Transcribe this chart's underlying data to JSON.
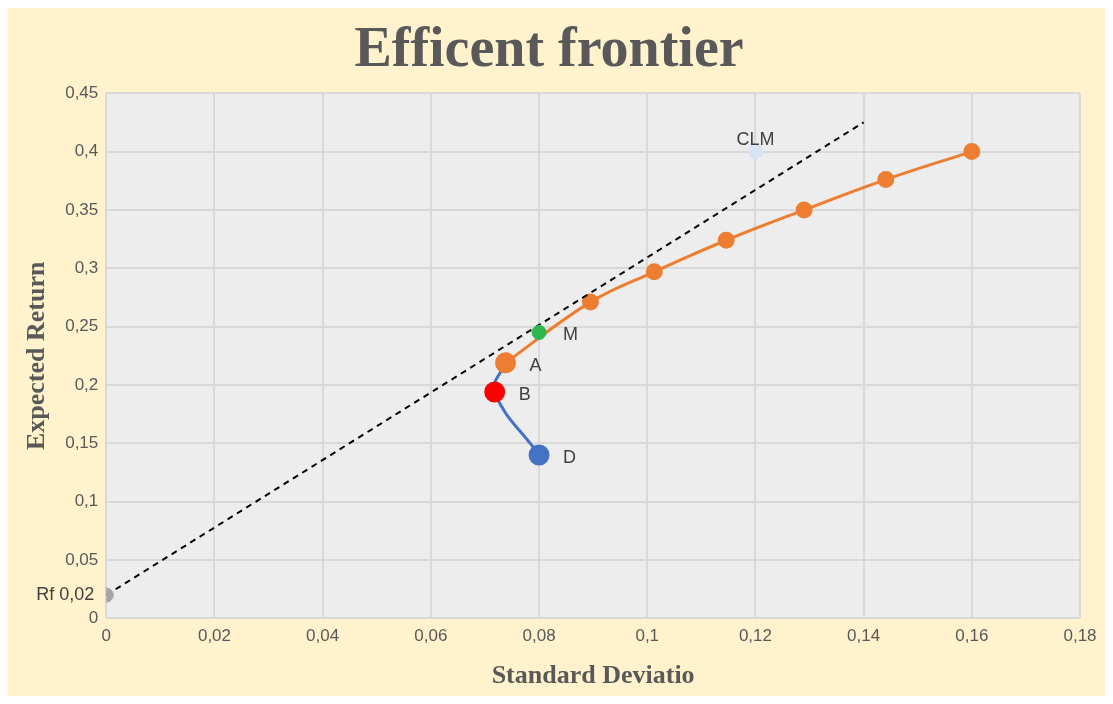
{
  "chart_data": {
    "type": "line",
    "title": "Efficent frontier",
    "xlabel": "Standard Deviatio",
    "ylabel": "Expected Return",
    "xlim": [
      0,
      0.18
    ],
    "ylim": [
      0,
      0.45
    ],
    "xticks": [
      {
        "value": 0,
        "label": "0"
      },
      {
        "value": 0.02,
        "label": "0,02"
      },
      {
        "value": 0.04,
        "label": "0,04"
      },
      {
        "value": 0.06,
        "label": "0,06"
      },
      {
        "value": 0.08,
        "label": "0,08"
      },
      {
        "value": 0.1,
        "label": "0,1"
      },
      {
        "value": 0.12,
        "label": "0,12"
      },
      {
        "value": 0.14,
        "label": "0,14"
      },
      {
        "value": 0.16,
        "label": "0,16"
      },
      {
        "value": 0.18,
        "label": "0,18"
      }
    ],
    "yticks": [
      {
        "value": 0,
        "label": "0"
      },
      {
        "value": 0.05,
        "label": "0,05"
      },
      {
        "value": 0.1,
        "label": "0,1"
      },
      {
        "value": 0.15,
        "label": "0,15"
      },
      {
        "value": 0.2,
        "label": "0,2"
      },
      {
        "value": 0.25,
        "label": "0,25"
      },
      {
        "value": 0.3,
        "label": "0,3"
      },
      {
        "value": 0.35,
        "label": "0,35"
      },
      {
        "value": 0.4,
        "label": "0,4"
      },
      {
        "value": 0.45,
        "label": "0,45"
      }
    ],
    "grid": true,
    "legend": false,
    "marker": "circle",
    "series": [
      {
        "color": "#4472c4",
        "colors": [
          "#4472c4",
          "#ff0000",
          "#ed7d31"
        ],
        "x": [
          0.08,
          0.0718,
          0.0738
        ],
        "values": [
          0.14,
          0.194,
          0.219
        ]
      },
      {
        "color": "#ed7d31",
        "x": [
          0.0738,
          0.0895,
          0.1013,
          0.1146,
          0.129,
          0.1441,
          0.16
        ],
        "values": [
          0.219,
          0.271,
          0.297,
          0.324,
          0.35,
          0.376,
          0.4
        ]
      },
      {
        "color": "#000000",
        "line_style": "dashed",
        "marker": "none",
        "x": [
          0,
          0.14
        ],
        "values": [
          0.02,
          0.425
        ]
      },
      {
        "type": "scatter",
        "color": "#2eb84b",
        "x": [
          0.08
        ],
        "values": [
          0.245
        ]
      },
      {
        "type": "scatter",
        "color": "#dae3f3",
        "x": [
          0.12
        ],
        "values": [
          0.4
        ]
      },
      {
        "type": "scatter",
        "color": "#a5a5a5",
        "x": [
          0
        ],
        "values": [
          0.02
        ]
      }
    ],
    "annotations": [
      {
        "text": "CLM",
        "x": 0.12,
        "y": 0.4
      },
      {
        "text": "M",
        "x": 0.08,
        "y": 0.245
      },
      {
        "text": "A",
        "x": 0.0738,
        "y": 0.219
      },
      {
        "text": "B",
        "x": 0.0718,
        "y": 0.194
      },
      {
        "text": "D",
        "x": 0.08,
        "y": 0.14
      },
      {
        "text": "Rf 0,02",
        "x": 0,
        "y": 0.02
      }
    ]
  }
}
